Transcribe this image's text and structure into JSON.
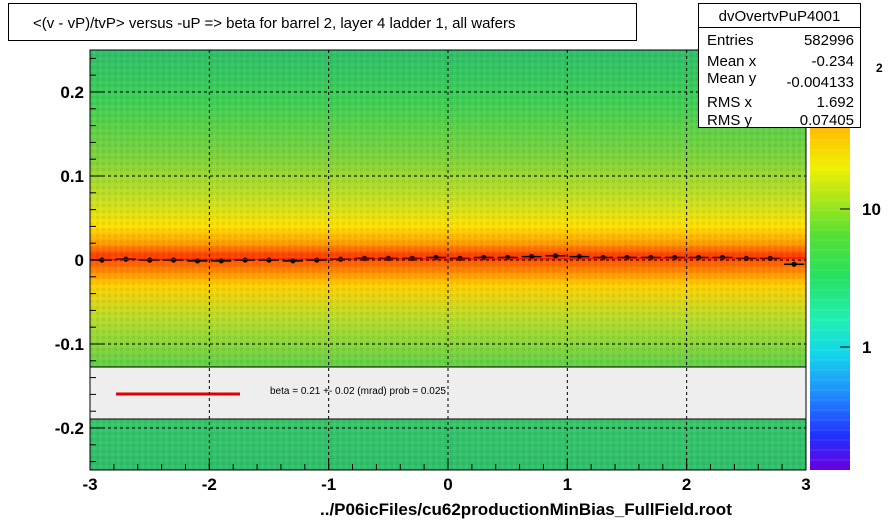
{
  "title": "<(v - vP)/tvP> versus  -uP => beta for barrel 2, layer 4 ladder 1, all wafers",
  "stats": {
    "name": "dvOvertvPuP4001",
    "rows": [
      {
        "label": "Entries",
        "value": "582996"
      },
      {
        "label": "Mean x",
        "value": "-0.234"
      },
      {
        "label": "Mean y",
        "value": "-0.004133"
      },
      {
        "label": "RMS x",
        "value": "1.692"
      },
      {
        "label": "RMS y",
        "value": "0.07405"
      }
    ]
  },
  "fit_legend": {
    "text": "beta =    0.21 +-  0.02 (mrad) prob = 0.025",
    "line_color": "#e00000"
  },
  "footer": "../P06icFiles/cu62productionMinBias_FullField.root",
  "chart_data": {
    "type": "heatmap",
    "xlim": [
      -3,
      3
    ],
    "ylim": [
      -0.25,
      0.25
    ],
    "x_ticks": [
      "-3",
      "-2",
      "-1",
      "0",
      "1",
      "2",
      "3"
    ],
    "y_ticks": [
      "-0.2",
      "-0.1",
      "0",
      "0.1",
      "0.2"
    ],
    "z_scale": "log",
    "z_tick_labels": [
      "1",
      "10"
    ],
    "z_top_label_fragment": "2",
    "grid": true,
    "profile": {
      "x": [
        -2.9,
        -2.7,
        -2.5,
        -2.3,
        -2.1,
        -1.9,
        -1.7,
        -1.5,
        -1.3,
        -1.1,
        -0.9,
        -0.7,
        -0.5,
        -0.3,
        -0.1,
        0.1,
        0.3,
        0.5,
        0.7,
        0.9,
        1.1,
        1.3,
        1.5,
        1.7,
        1.9,
        2.1,
        2.3,
        2.5,
        2.7,
        2.9
      ],
      "y": [
        0.0,
        0.001,
        0.0,
        0.0,
        -0.001,
        -0.001,
        0.0,
        0.0,
        -0.001,
        0.0,
        0.001,
        0.002,
        0.002,
        0.002,
        0.003,
        0.002,
        0.003,
        0.003,
        0.004,
        0.005,
        0.004,
        0.003,
        0.003,
        0.003,
        0.003,
        0.003,
        0.003,
        0.002,
        0.002,
        -0.005
      ]
    },
    "fit": {
      "label": "beta",
      "value_mrad": 0.21,
      "error_mrad": 0.02,
      "prob": 0.025
    }
  }
}
